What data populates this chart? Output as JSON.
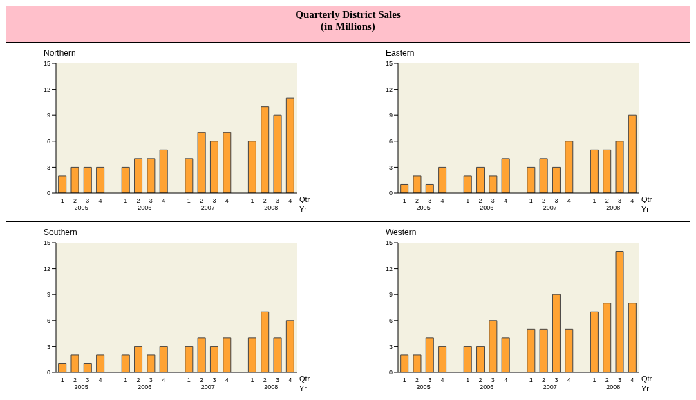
{
  "chart_data": [
    {
      "type": "bar",
      "title": "Quarterly District Sales\n(in Millions)",
      "subtitle": "Northern",
      "xlabel": "Qtr",
      "annotations": [
        "2005",
        "2006",
        "2007",
        "2008",
        "Yr"
      ],
      "categories": [
        "1",
        "2",
        "3",
        "4",
        null,
        "1",
        "2",
        "3",
        "4",
        null,
        "1",
        "2",
        "3",
        "4",
        null,
        "1",
        "2",
        "3",
        "4"
      ],
      "values": [
        2,
        3,
        3,
        3,
        null,
        3,
        4,
        4,
        5,
        null,
        4,
        7,
        6,
        7,
        null,
        6,
        10,
        9,
        11
      ],
      "color": "#ffa333",
      "ylim": [
        0,
        15
      ],
      "yticks": [
        0,
        3,
        6,
        9,
        12,
        15
      ]
    },
    {
      "type": "bar",
      "subtitle": "Eastern",
      "xlabel": "Qtr",
      "annotations": [
        "2005",
        "2006",
        "2007",
        "2008",
        "Yr"
      ],
      "categories": [
        "1",
        "2",
        "3",
        "4",
        null,
        "1",
        "2",
        "3",
        "4",
        null,
        "1",
        "2",
        "3",
        "4",
        null,
        "1",
        "2",
        "3",
        "4"
      ],
      "values": [
        1,
        2,
        1,
        3,
        null,
        2,
        3,
        2,
        4,
        null,
        3,
        4,
        3,
        6,
        null,
        5,
        5,
        6,
        9
      ],
      "color": "#ffa333",
      "ylim": [
        0,
        15
      ],
      "yticks": [
        0,
        3,
        6,
        9,
        12,
        15
      ]
    },
    {
      "type": "bar",
      "subtitle": "Southern",
      "xlabel": "Qtr",
      "annotations": [
        "2005",
        "2006",
        "2007",
        "2008",
        "Yr"
      ],
      "categories": [
        "1",
        "2",
        "3",
        "4",
        null,
        "1",
        "2",
        "3",
        "4",
        null,
        "1",
        "2",
        "3",
        "4",
        null,
        "1",
        "2",
        "3",
        "4"
      ],
      "values": [
        1,
        2,
        1,
        2,
        null,
        2,
        3,
        2,
        3,
        null,
        3,
        4,
        3,
        4,
        null,
        4,
        7,
        4,
        6
      ],
      "color": "#ffa333",
      "ylim": [
        0,
        15
      ],
      "yticks": [
        0,
        3,
        6,
        9,
        12,
        15
      ]
    },
    {
      "type": "bar",
      "subtitle": "Western",
      "xlabel": "Qtr",
      "annotations": [
        "2005",
        "2006",
        "2007",
        "2008",
        "Yr"
      ],
      "categories": [
        "1",
        "2",
        "3",
        "4",
        null,
        "1",
        "2",
        "3",
        "4",
        null,
        "1",
        "2",
        "3",
        "4",
        null,
        "1",
        "2",
        "3",
        "4"
      ],
      "values": [
        2,
        2,
        4,
        3,
        null,
        3,
        3,
        6,
        4,
        null,
        5,
        5,
        9,
        5,
        null,
        7,
        8,
        14,
        8
      ],
      "color": "#ffa333",
      "ylim": [
        0,
        15
      ],
      "yticks": [
        0,
        3,
        6,
        9,
        12,
        15
      ]
    }
  ]
}
